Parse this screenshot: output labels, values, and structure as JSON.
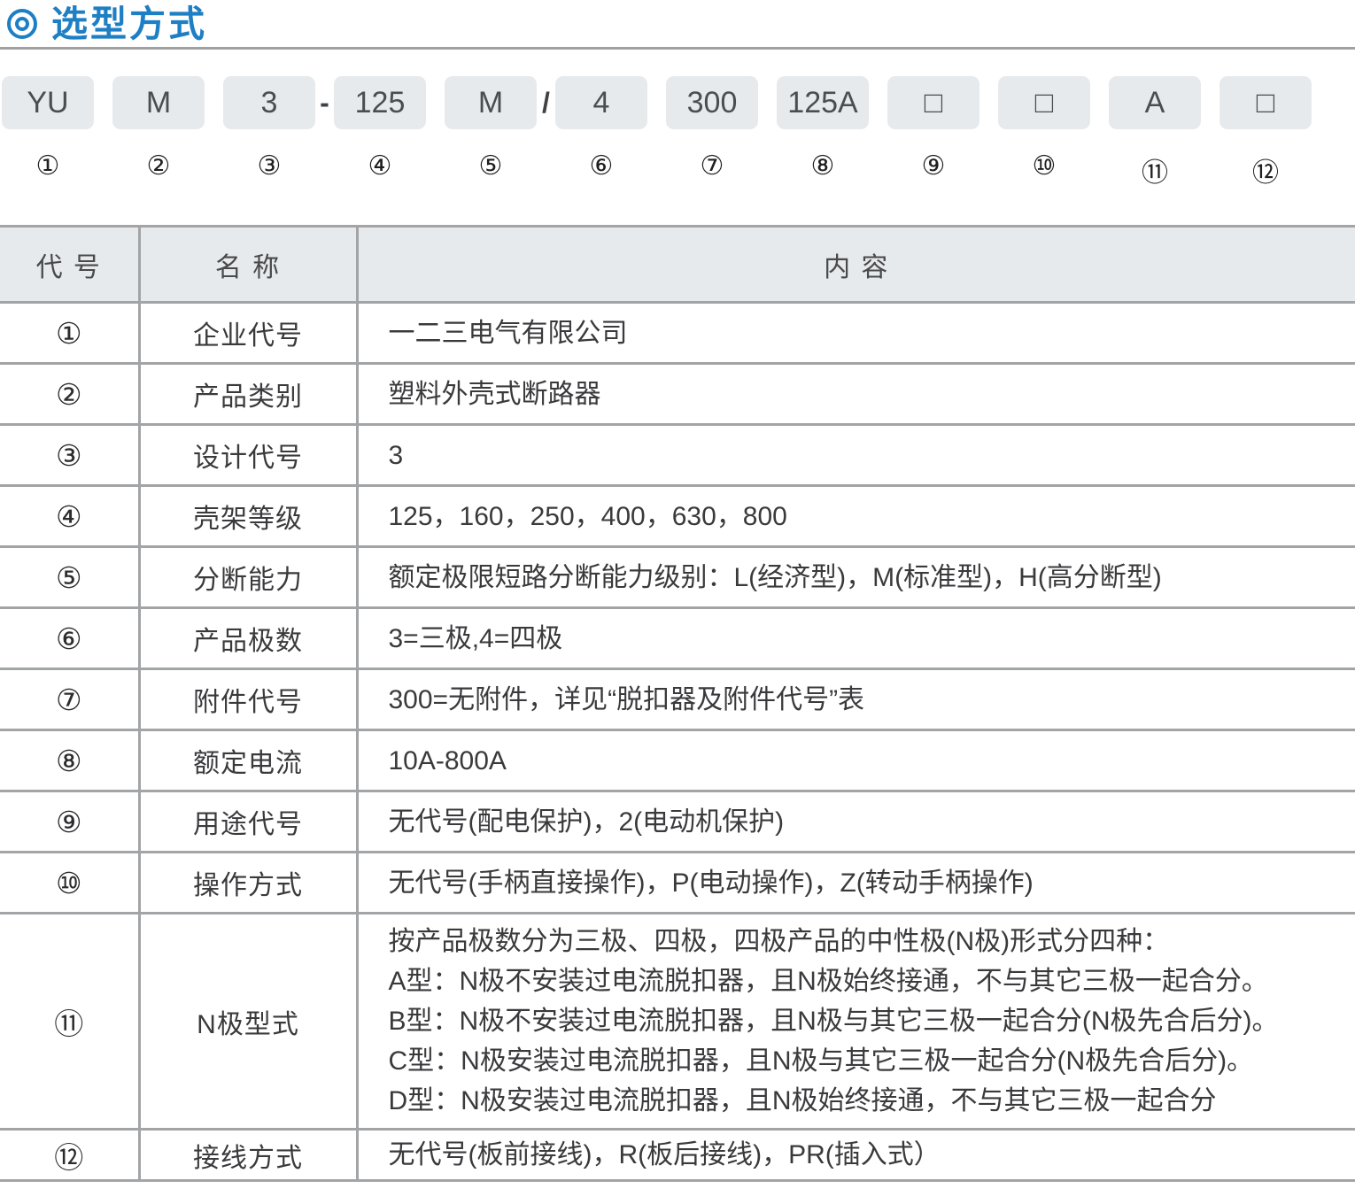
{
  "section": {
    "title": "选型方式"
  },
  "model_code": {
    "boxes": [
      {
        "num": "①",
        "code": "YU",
        "sep_after": ""
      },
      {
        "num": "②",
        "code": "M",
        "sep_after": ""
      },
      {
        "num": "③",
        "code": "3",
        "sep_after": "-"
      },
      {
        "num": "④",
        "code": "125",
        "sep_after": ""
      },
      {
        "num": "⑤",
        "code": "M",
        "sep_after": "/"
      },
      {
        "num": "⑥",
        "code": "4",
        "sep_after": ""
      },
      {
        "num": "⑦",
        "code": "300",
        "sep_after": ""
      },
      {
        "num": "⑧",
        "code": "125A",
        "sep_after": ""
      },
      {
        "num": "⑨",
        "code": "□",
        "sep_after": ""
      },
      {
        "num": "⑩",
        "code": "□",
        "sep_after": ""
      },
      {
        "num": "⑪",
        "code": "A",
        "sep_after": ""
      },
      {
        "num": "⑫",
        "code": "□",
        "sep_after": ""
      }
    ]
  },
  "table": {
    "headers": {
      "code": "代 号",
      "name": "名 称",
      "content": "内 容"
    },
    "rows": [
      {
        "code": "①",
        "name": "企业代号",
        "content": [
          "一二三电气有限公司"
        ]
      },
      {
        "code": "②",
        "name": "产品类别",
        "content": [
          "塑料外壳式断路器"
        ]
      },
      {
        "code": "③",
        "name": "设计代号",
        "content": [
          "3"
        ]
      },
      {
        "code": "④",
        "name": "壳架等级",
        "content": [
          "125，160，250，400，630，800"
        ]
      },
      {
        "code": "⑤",
        "name": "分断能力",
        "content": [
          "额定极限短路分断能力级别：L(经济型)，M(标准型)，H(高分断型)"
        ]
      },
      {
        "code": "⑥",
        "name": "产品极数",
        "content": [
          "3=三极,4=四极"
        ]
      },
      {
        "code": "⑦",
        "name": "附件代号",
        "content": [
          "300=无附件，详见“脱扣器及附件代号”表"
        ]
      },
      {
        "code": "⑧",
        "name": "额定电流",
        "content": [
          "10A-800A"
        ]
      },
      {
        "code": "⑨",
        "name": "用途代号",
        "content": [
          "无代号(配电保护)，2(电动机保护)"
        ]
      },
      {
        "code": "⑩",
        "name": "操作方式",
        "content": [
          "无代号(手柄直接操作)，P(电动操作)，Z(转动手柄操作)"
        ]
      },
      {
        "code": "⑪",
        "name": "N极型式",
        "content": [
          "按产品极数分为三极、四极，四极产品的中性极(N极)形式分四种：",
          "A型：N极不安装过电流脱扣器，且N极始终接通，不与其它三极一起合分。",
          "B型：N极不安装过电流脱扣器，且N极与其它三极一起合分(N极先合后分)。",
          "C型：N极安装过电流脱扣器，且N极与其它三极一起合分(N极先合后分)。",
          "D型：N极安装过电流脱扣器，且N极始终接通，不与其它三极一起合分"
        ]
      },
      {
        "code": "⑫",
        "name": "接线方式",
        "content": [
          "无代号(板前接线)，R(板后接线)，PR(插入式）"
        ]
      }
    ]
  },
  "colors": {
    "accent_blue": "#1e7fc4",
    "box_fill": "#e7eaec",
    "header_fill": "#e7eaec",
    "grid_border": "#a2a4a6",
    "rule_gray": "#9fa1a3",
    "text_dark": "#3a3a3c"
  }
}
